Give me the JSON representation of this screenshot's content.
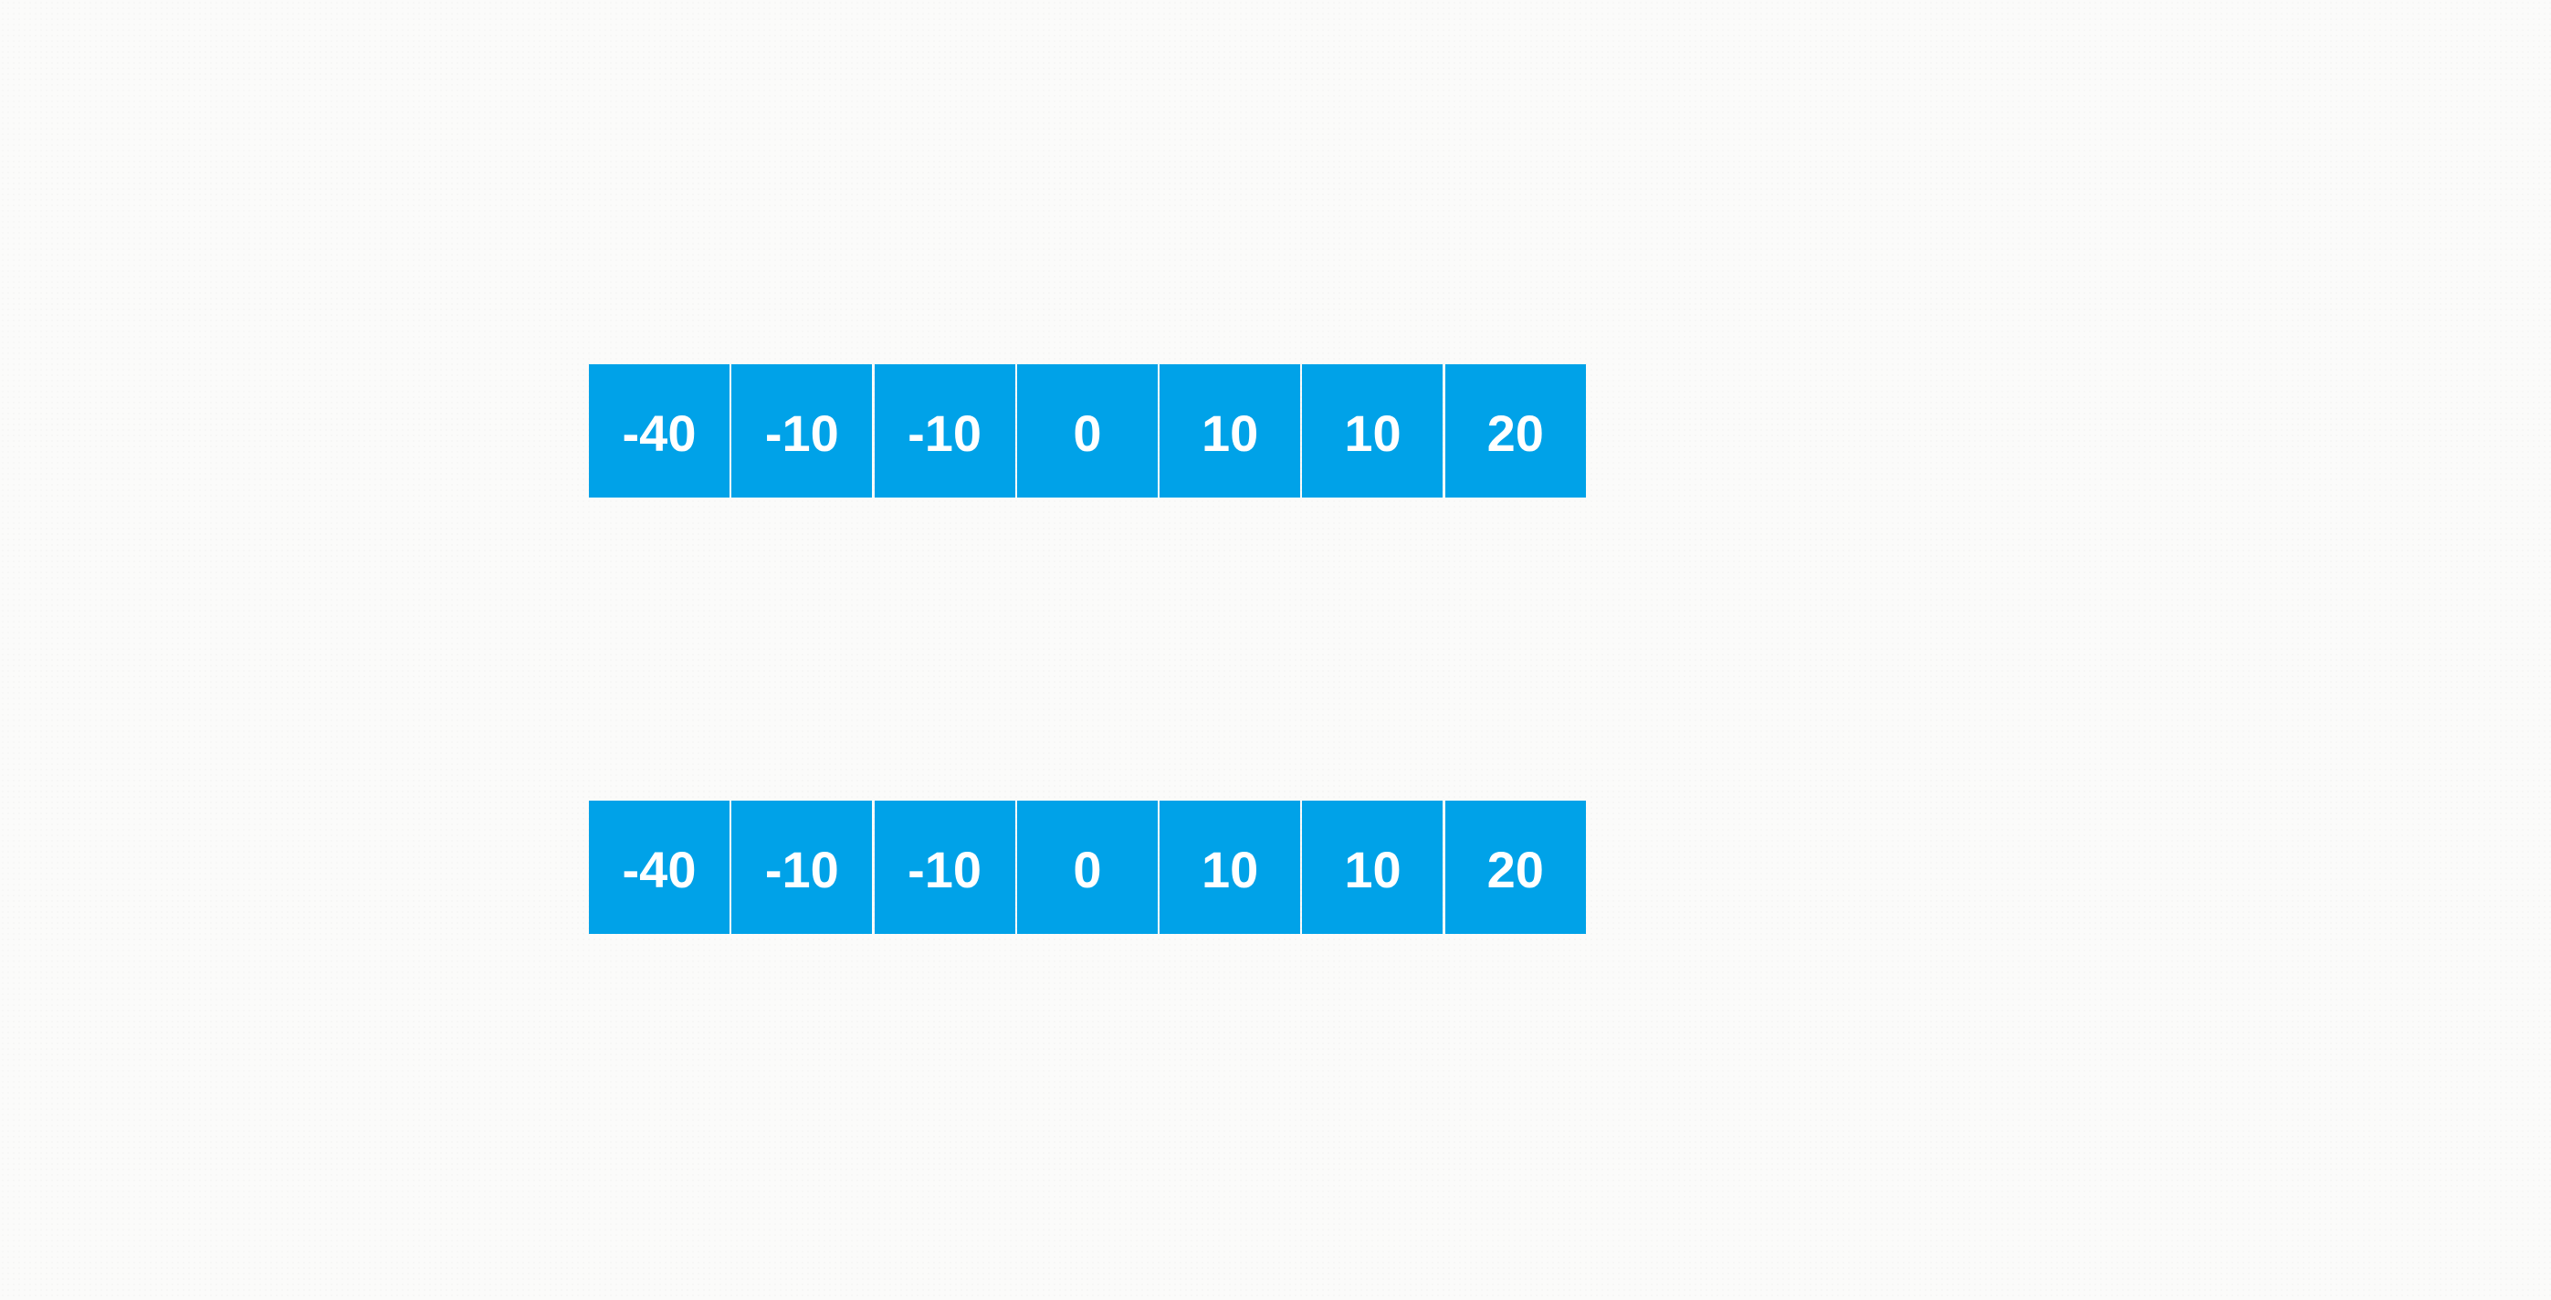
{
  "cell_color": "#00a2e8",
  "text_color": "#ffffff",
  "background_color": "#fbfbfa",
  "arrays": [
    {
      "cells": [
        "-40",
        "-10",
        "-10",
        "0",
        "10",
        "10",
        "20"
      ]
    },
    {
      "cells": [
        "-40",
        "-10",
        "-10",
        "0",
        "10",
        "10",
        "20"
      ]
    }
  ]
}
